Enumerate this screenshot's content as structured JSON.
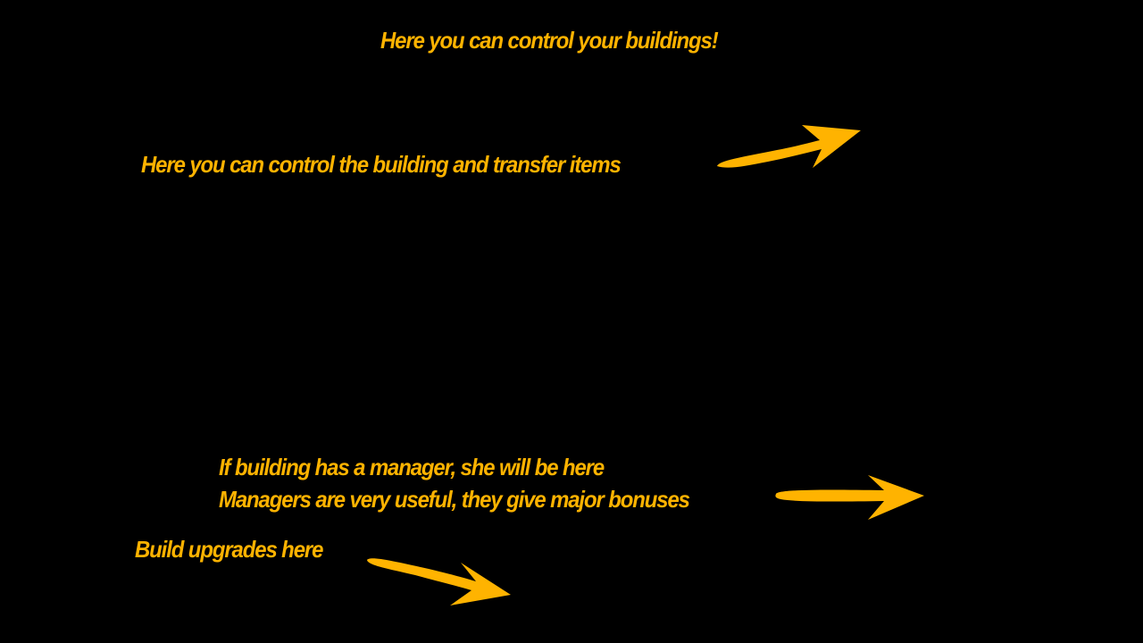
{
  "tutorial": {
    "title": "Here you can control your buildings!",
    "transfer_hint": "Here you can control the building and transfer items",
    "manager_hint_line1": "If building has a manager, she will be here",
    "manager_hint_line2": "Managers  are very useful, they give major bonuses",
    "upgrades_hint": "Build upgrades here"
  },
  "colors": {
    "background": "#000000",
    "accent": "#FFB300"
  },
  "icons": [
    "arrow-right-icon",
    "arrow-right-icon",
    "arrow-down-right-icon"
  ]
}
